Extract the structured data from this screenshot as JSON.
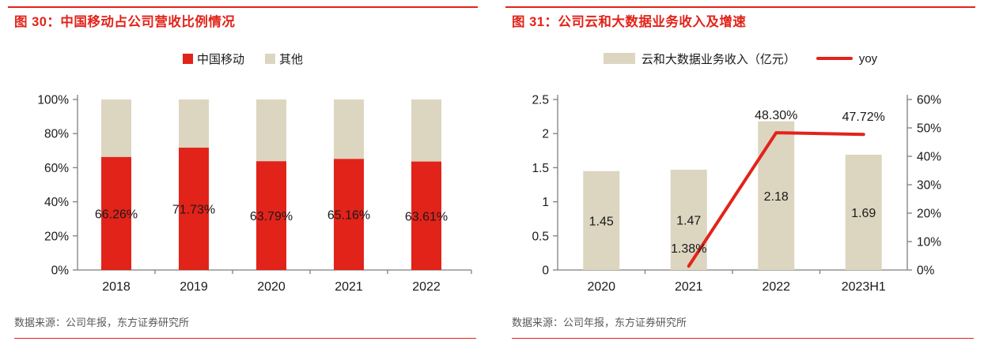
{
  "colors": {
    "red": "#e2231a",
    "beige": "#dcd5c0",
    "title_red": "#e32219",
    "axis": "#7f7f7f",
    "text": "#1a1a1a",
    "source_text": "#595757"
  },
  "figure30": {
    "title": "图 30：中国移动占公司营收比例情况",
    "legend": [
      "中国移动",
      "其他"
    ],
    "source": "数据来源：公司年报，东方证券研究所"
  },
  "figure31": {
    "title": "图 31：公司云和大数据业务收入及增速",
    "legend": [
      "云和大数据业务收入（亿元）",
      "yoy"
    ],
    "source": "数据来源：公司年报，东方证券研究所"
  },
  "chart_data": [
    {
      "type": "bar",
      "subtype": "stacked-100pct",
      "title": "中国移动占公司营收比例情况",
      "categories": [
        "2018",
        "2019",
        "2020",
        "2021",
        "2022"
      ],
      "series": [
        {
          "name": "中国移动",
          "color_key": "red",
          "values": [
            66.26,
            71.73,
            63.79,
            65.16,
            63.61
          ]
        },
        {
          "name": "其他",
          "color_key": "beige",
          "values": [
            33.74,
            28.27,
            36.21,
            34.84,
            36.39
          ]
        }
      ],
      "data_labels": [
        "66.26%",
        "71.73%",
        "63.79%",
        "65.16%",
        "63.61%"
      ],
      "ylim": [
        0,
        100
      ],
      "yticks": [
        "0%",
        "20%",
        "40%",
        "60%",
        "80%",
        "100%"
      ],
      "grid": false,
      "legend_position": "top"
    },
    {
      "type": "bar+line",
      "title": "公司云和大数据业务收入及增速",
      "categories": [
        "2020",
        "2021",
        "2022",
        "2023H1"
      ],
      "series": [
        {
          "name": "云和大数据业务收入（亿元）",
          "type": "bar",
          "axis": "left",
          "color_key": "beige",
          "values": [
            1.45,
            1.47,
            2.18,
            1.69
          ],
          "labels": [
            "1.45",
            "1.47",
            "2.18",
            "1.69"
          ]
        },
        {
          "name": "yoy",
          "type": "line",
          "axis": "right",
          "color_key": "red",
          "points": [
            {
              "category_index": 1,
              "value": 1.38,
              "label": "1.38%"
            },
            {
              "category_index": 2,
              "value": 48.3,
              "label": "48.30%"
            },
            {
              "category_index": 3,
              "value": 47.72,
              "label": "47.72%"
            }
          ]
        }
      ],
      "left_ylim": [
        0,
        2.5
      ],
      "left_yticks": [
        "0",
        "0.5",
        "1",
        "1.5",
        "2",
        "2.5"
      ],
      "right_ylim": [
        0,
        60
      ],
      "right_yticks": [
        "0%",
        "10%",
        "20%",
        "30%",
        "40%",
        "50%",
        "60%"
      ],
      "grid": false,
      "legend_position": "top"
    }
  ]
}
